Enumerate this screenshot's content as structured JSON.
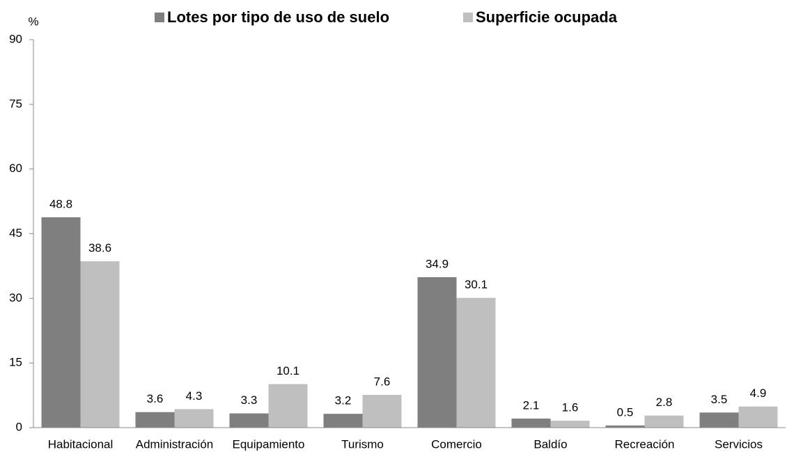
{
  "chart_data": {
    "type": "bar",
    "y_axis_label": "%",
    "categories": [
      "Habitacional",
      "Administración",
      "Equipamiento",
      "Turismo",
      "Comercio",
      "Baldío",
      "Recreación",
      "Servicios"
    ],
    "series": [
      {
        "name": "Lotes por tipo de uso de suelo",
        "color": "#7f7f7f",
        "values": [
          48.8,
          3.6,
          3.3,
          3.2,
          34.9,
          2.1,
          0.5,
          3.5
        ]
      },
      {
        "name": "Superficie ocupada",
        "color": "#bfbfbf",
        "values": [
          38.6,
          4.3,
          10.1,
          7.6,
          30.1,
          1.6,
          2.8,
          4.9
        ]
      }
    ],
    "ylim": [
      0,
      90
    ],
    "yticks": [
      0,
      15,
      30,
      45,
      60,
      75,
      90
    ],
    "grid": false,
    "legend": "top"
  }
}
